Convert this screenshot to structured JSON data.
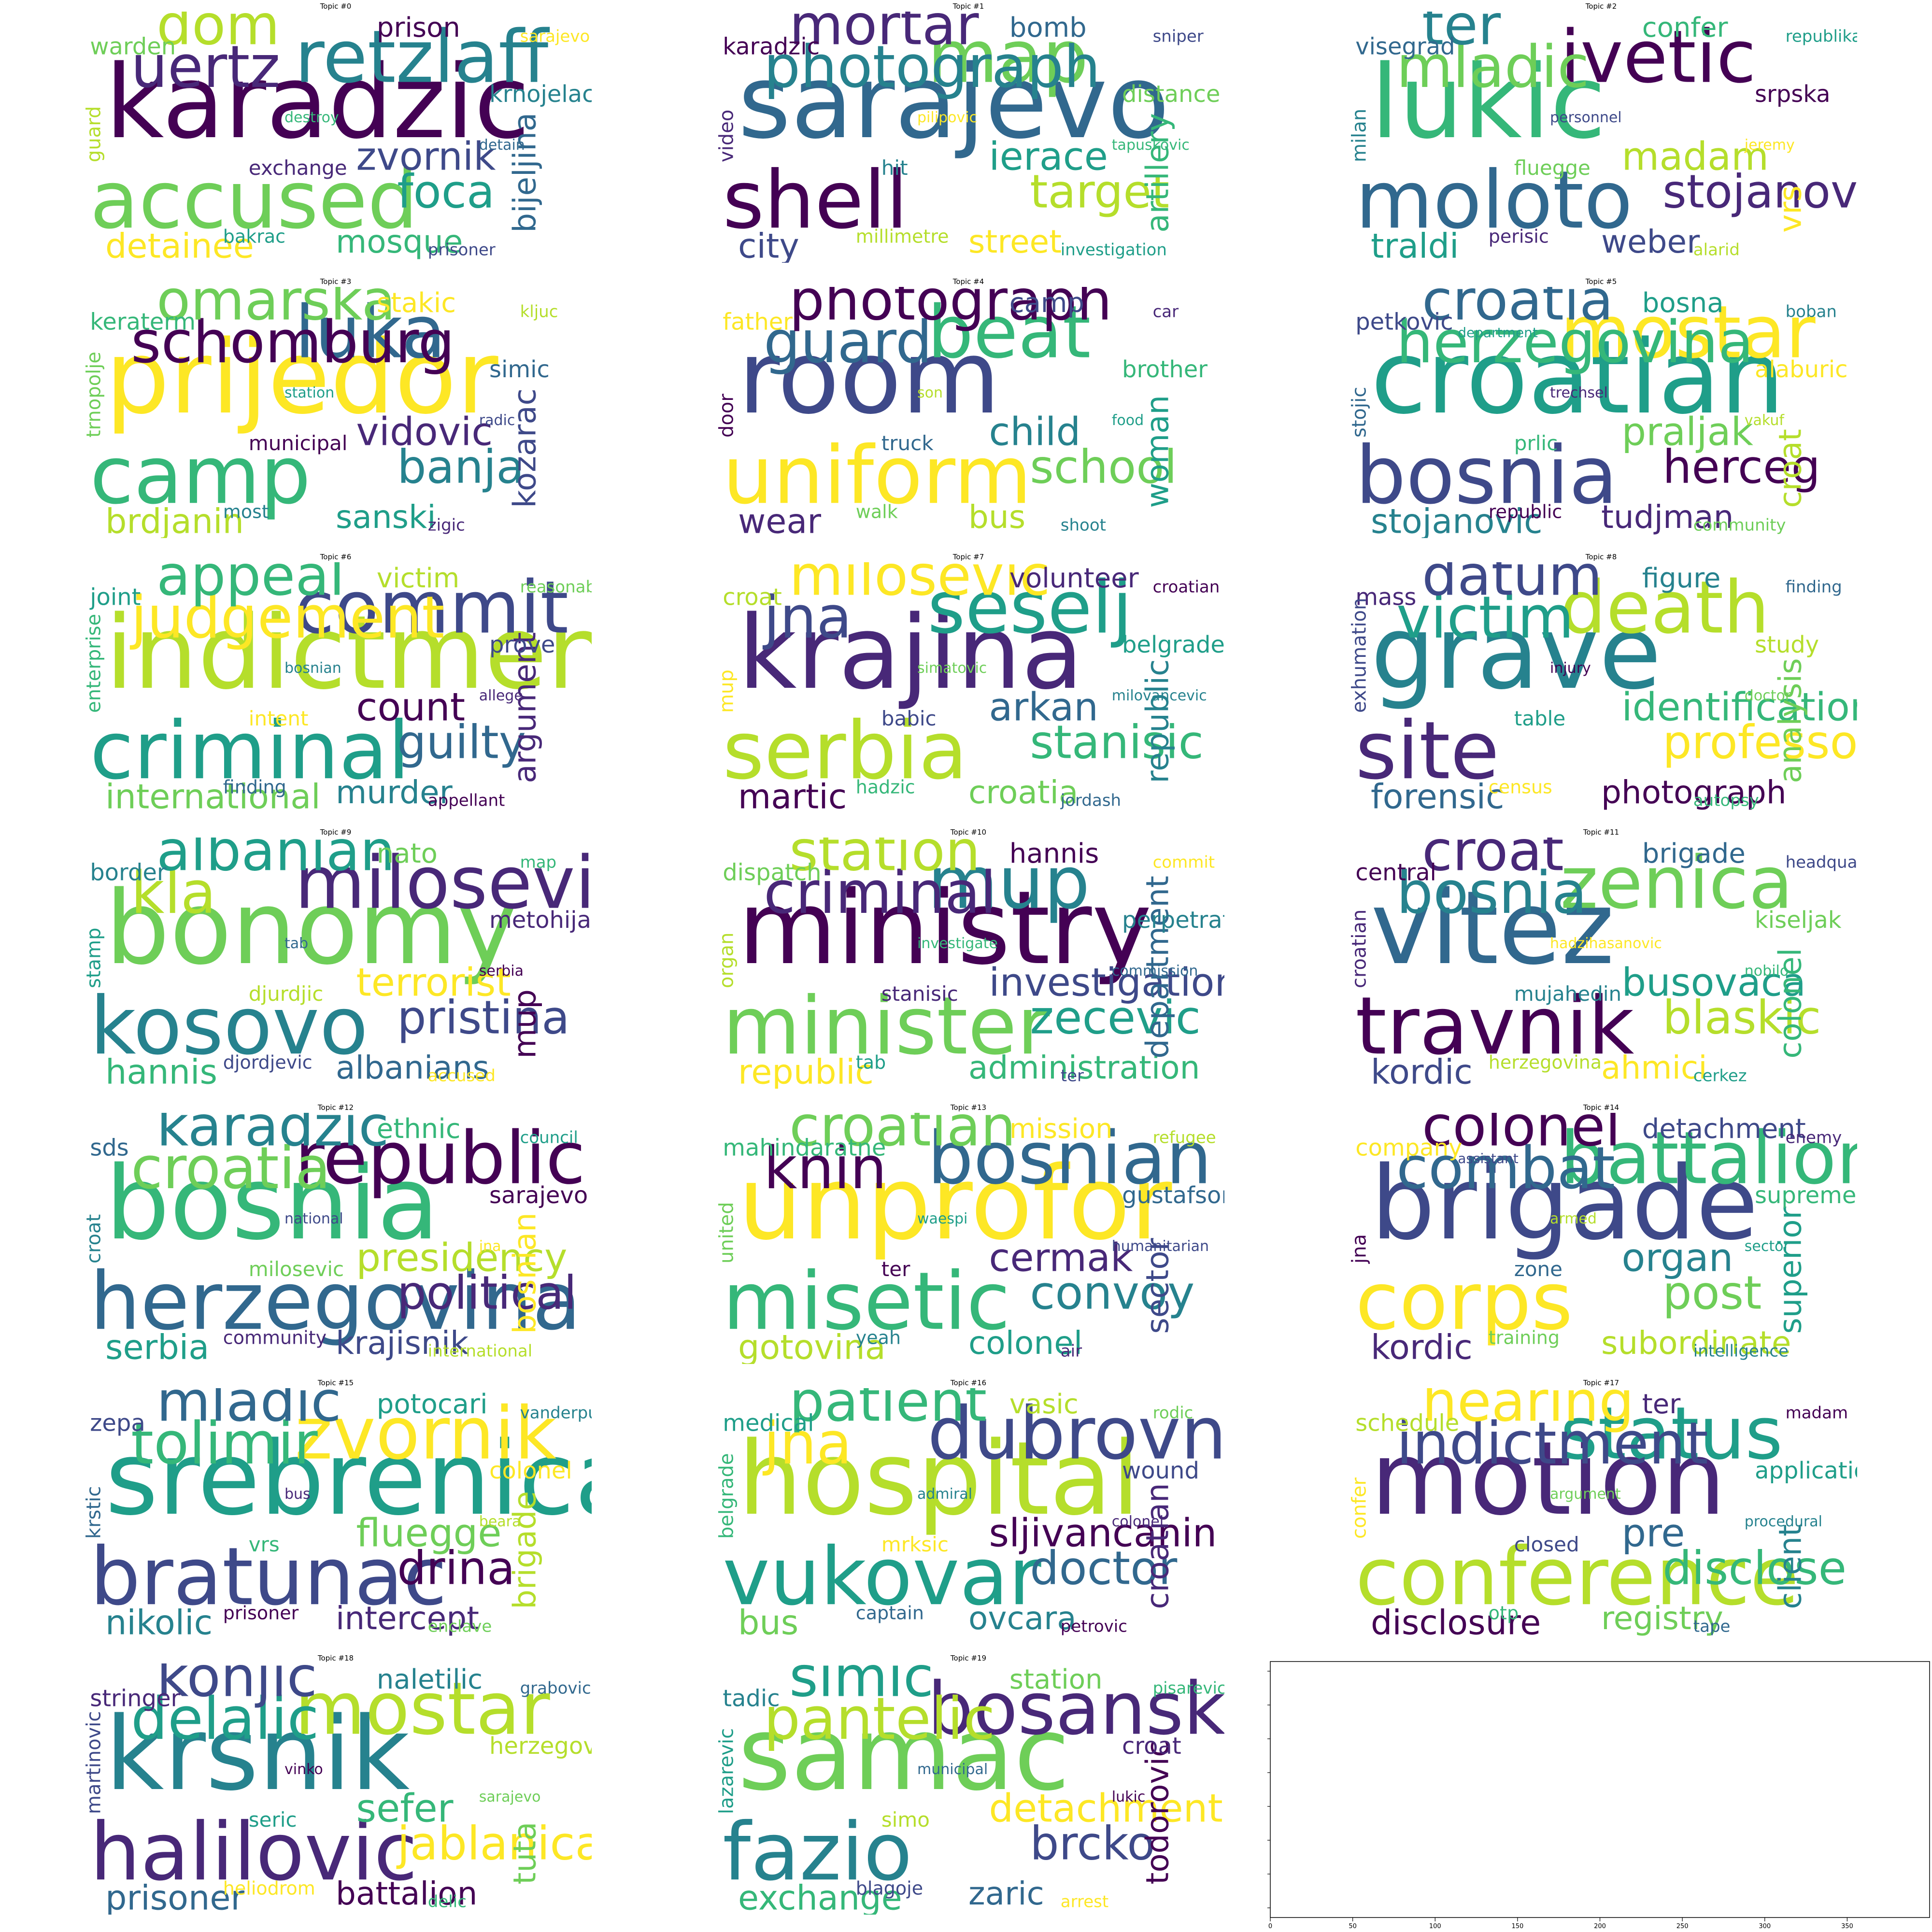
{
  "figure": {
    "panels": [
      {
        "title": "Topic #0",
        "words": [
          "karadzic",
          "accused",
          "retzlaff",
          "uertz",
          "dom",
          "foca",
          "zvornik",
          "detainee",
          "mosque",
          "bijeljina",
          "prison",
          "warden",
          "krnojelac",
          "exchange",
          "guard",
          "bakrac",
          "prisoner",
          "sarajevo",
          "destroy",
          "detain"
        ]
      },
      {
        "title": "Topic #1",
        "words": [
          "sarajevo",
          "shell",
          "map",
          "photograph",
          "mortar",
          "target",
          "ierace",
          "city",
          "street",
          "artillery",
          "bomb",
          "karadzic",
          "distance",
          "hit",
          "video",
          "millimetre",
          "investigation",
          "sniper",
          "pilipovic",
          "tapuskovic"
        ]
      },
      {
        "title": "Topic #2",
        "words": [
          "lukic",
          "moloto",
          "ivetic",
          "mladic",
          "ter",
          "stojanovic",
          "madam",
          "traldi",
          "weber",
          "vrs",
          "confer",
          "visegrad",
          "srpska",
          "fluegge",
          "milan",
          "perisic",
          "alarid",
          "republika",
          "personnel",
          "jeremy"
        ]
      },
      {
        "title": "Topic #3",
        "words": [
          "prijedor",
          "camp",
          "luka",
          "schomburg",
          "omarska",
          "banja",
          "vidovic",
          "brdjanin",
          "sanski",
          "kozarac",
          "stakic",
          "keraterm",
          "simic",
          "municipal",
          "trnopolje",
          "most",
          "zigic",
          "kljuc",
          "station",
          "radic"
        ]
      },
      {
        "title": "Topic #4",
        "words": [
          "room",
          "uniform",
          "beat",
          "guard",
          "photograph",
          "school",
          "child",
          "wear",
          "bus",
          "woman",
          "camp",
          "father",
          "brother",
          "truck",
          "door",
          "walk",
          "shoot",
          "car",
          "son",
          "food"
        ]
      },
      {
        "title": "Topic #5",
        "words": [
          "croatian",
          "bosnia",
          "mostar",
          "herzegovina",
          "croatia",
          "herceg",
          "praljak",
          "stojanovic",
          "tudjman",
          "croat",
          "bosna",
          "petkovic",
          "alaburic",
          "prlic",
          "stojic",
          "republic",
          "community",
          "boban",
          "trechsel",
          "vakuf",
          "department"
        ]
      },
      {
        "title": "Topic #6",
        "words": [
          "indictment",
          "criminal",
          "commit",
          "judgement",
          "appeal",
          "guilty",
          "count",
          "international",
          "murder",
          "argument",
          "victim",
          "joint",
          "prove",
          "intent",
          "enterprise",
          "finding",
          "appellant",
          "reasonable",
          "bosnian",
          "allege"
        ]
      },
      {
        "title": "Topic #7",
        "words": [
          "krajina",
          "serbia",
          "seselj",
          "jna",
          "milosevic",
          "stanisic",
          "arkan",
          "martic",
          "croatia",
          "republic",
          "volunteer",
          "croat",
          "belgrade",
          "babic",
          "mup",
          "hadzic",
          "jordash",
          "croatian",
          "simatovic",
          "milovancevic"
        ]
      },
      {
        "title": "Topic #8",
        "words": [
          "grave",
          "site",
          "death",
          "victim",
          "datum",
          "professor",
          "identification",
          "forensic",
          "photograph",
          "analysis",
          "figure",
          "mass",
          "study",
          "table",
          "exhumation",
          "census",
          "autopsy",
          "finding",
          "injury",
          "doctor"
        ]
      },
      {
        "title": "Topic #9",
        "words": [
          "bonomy",
          "kosovo",
          "milosevic",
          "kla",
          "albanian",
          "pristina",
          "terrorist",
          "hannis",
          "albanians",
          "mup",
          "nato",
          "border",
          "metohija",
          "djurdjic",
          "stamp",
          "djordjevic",
          "accused",
          "map",
          "tab",
          "serbia"
        ]
      },
      {
        "title": "Topic #10",
        "words": [
          "ministry",
          "minister",
          "mup",
          "criminal",
          "station",
          "zecevic",
          "investigation",
          "republic",
          "administration",
          "department",
          "hannis",
          "dispatch",
          "perpetrator",
          "stanisic",
          "organ",
          "tab",
          "ter",
          "commit",
          "investigate",
          "commission"
        ]
      },
      {
        "title": "Topic #11",
        "words": [
          "vitez",
          "travnik",
          "zenica",
          "bosnia",
          "croat",
          "blaskic",
          "busovaca",
          "kordic",
          "ahmici",
          "colonel",
          "brigade",
          "central",
          "kiseljak",
          "mujahedin",
          "croatian",
          "herzegovina",
          "cerkez",
          "headquarters",
          "hadzihasanovic",
          "nobilo"
        ]
      },
      {
        "title": "Topic #12",
        "words": [
          "bosnia",
          "herzegovina",
          "republic",
          "croatia",
          "karadzic",
          "political",
          "presidency",
          "serbia",
          "krajisnik",
          "bosnian",
          "ethnic",
          "sds",
          "sarajevo",
          "milosevic",
          "croat",
          "community",
          "international",
          "council",
          "national",
          "jna"
        ]
      },
      {
        "title": "Topic #13",
        "words": [
          "unprofor",
          "misetic",
          "bosnian",
          "knin",
          "croatian",
          "convoy",
          "cermak",
          "gotovina",
          "colonel",
          "sector",
          "mission",
          "mahindaratne",
          "gustafson",
          "ter",
          "united",
          "yeah",
          "air",
          "refugee",
          "waespi",
          "humanitarian"
        ]
      },
      {
        "title": "Topic #14",
        "words": [
          "brigade",
          "corps",
          "battalion",
          "combat",
          "colonel",
          "post",
          "organ",
          "kordic",
          "subordinate",
          "superior",
          "detachment",
          "company",
          "supreme",
          "zone",
          "jna",
          "training",
          "intelligence",
          "enemy",
          "armed",
          "sector",
          "assistant"
        ]
      },
      {
        "title": "Topic #15",
        "words": [
          "srebrenica",
          "bratunac",
          "zvornik",
          "tolimir",
          "mladic",
          "drina",
          "fluegge",
          "nikolic",
          "intercept",
          "brigade",
          "potocari",
          "zepa",
          "colonel",
          "vrs",
          "krstic",
          "prisoner",
          "enclave",
          "vanderpuye",
          "bus",
          "beara"
        ]
      },
      {
        "title": "Topic #16",
        "words": [
          "hospital",
          "vukovar",
          "dubrovnik",
          "jna",
          "patient",
          "doctor",
          "sljivancanin",
          "bus",
          "ovcara",
          "croatian",
          "vasic",
          "medical",
          "wound",
          "mrksic",
          "belgrade",
          "captain",
          "petrovic",
          "rodic",
          "admiral",
          "colonel"
        ]
      },
      {
        "title": "Topic #17",
        "words": [
          "motion",
          "conference",
          "status",
          "indictment",
          "hearing",
          "disclose",
          "pre",
          "disclosure",
          "registry",
          "client",
          "ter",
          "schedule",
          "application",
          "closed",
          "confer",
          "otp",
          "tape",
          "madam",
          "argument",
          "procedural"
        ]
      },
      {
        "title": "Topic #18",
        "words": [
          "krsnik",
          "halilovic",
          "mostar",
          "delalic",
          "konjic",
          "jablanica",
          "sefer",
          "prisoner",
          "battalion",
          "tuta",
          "naletilic",
          "stringer",
          "herzegovina",
          "seric",
          "martinovic",
          "heliodrom",
          "delic",
          "grabovica",
          "vinko",
          "sarajevo"
        ]
      },
      {
        "title": "Topic #19",
        "words": [
          "samac",
          "fazio",
          "bosanski",
          "pantelic",
          "simic",
          "brcko",
          "detachment",
          "exchange",
          "zaric",
          "todorovic",
          "station",
          "tadic",
          "croat",
          "simo",
          "lazarevic",
          "blagoje",
          "arrest",
          "pisarevic",
          "municipal",
          "lukic"
        ]
      }
    ],
    "empty_panel": {
      "xticks": [
        "0",
        "50",
        "100",
        "150",
        "200",
        "250",
        "300",
        "350"
      ]
    }
  },
  "chart_data": {
    "type": "wordcloud",
    "topics": 20,
    "colormap": "viridis",
    "empty_axes": {
      "xlim": [
        0,
        400
      ],
      "xticks": [
        0,
        50,
        100,
        150,
        200,
        250,
        300,
        350
      ]
    }
  }
}
